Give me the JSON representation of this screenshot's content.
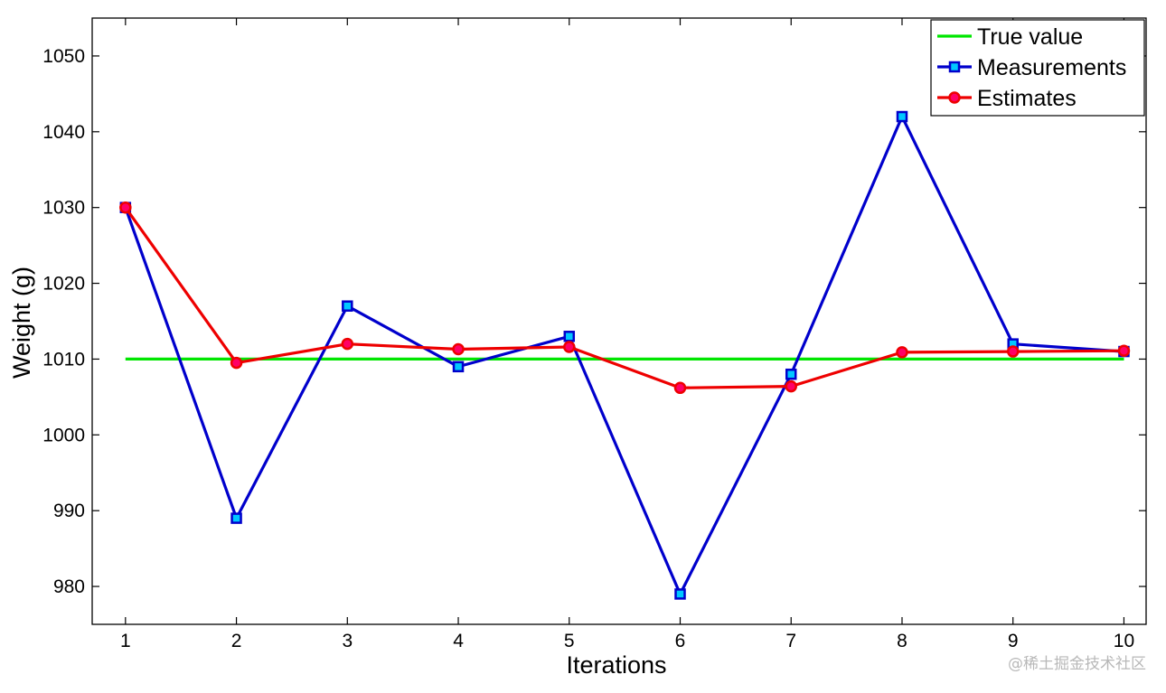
{
  "chart_data": {
    "type": "line",
    "title": "",
    "xlabel": "Iterations",
    "ylabel": "Weight (g)",
    "x": [
      1,
      2,
      3,
      4,
      5,
      6,
      7,
      8,
      9,
      10
    ],
    "xlim": [
      0.7,
      10.2
    ],
    "ylim": [
      975,
      1055
    ],
    "yticks": [
      980,
      990,
      1000,
      1010,
      1020,
      1030,
      1040,
      1050
    ],
    "xticks": [
      1,
      2,
      3,
      4,
      5,
      6,
      7,
      8,
      9,
      10
    ],
    "grid": false,
    "legend_position": "top-right",
    "series": [
      {
        "name": "True value",
        "color": "#00e600",
        "marker": "none",
        "values": [
          1010,
          1010,
          1010,
          1010,
          1010,
          1010,
          1010,
          1010,
          1010,
          1010
        ]
      },
      {
        "name": "Measurements",
        "color": "#0000cc",
        "marker": "square",
        "marker_fill": "#00c8ff",
        "values": [
          1030,
          989,
          1017,
          1009,
          1013,
          979,
          1008,
          1042,
          1012,
          1011
        ]
      },
      {
        "name": "Estimates",
        "color": "#ee0000",
        "marker": "circle",
        "marker_fill": "#ff0066",
        "values": [
          1030,
          1009.5,
          1012,
          1011.3,
          1011.6,
          1006.2,
          1006.4,
          1010.9,
          1011,
          1011.1
        ]
      }
    ]
  },
  "watermark": "@稀土掘金技术社区"
}
